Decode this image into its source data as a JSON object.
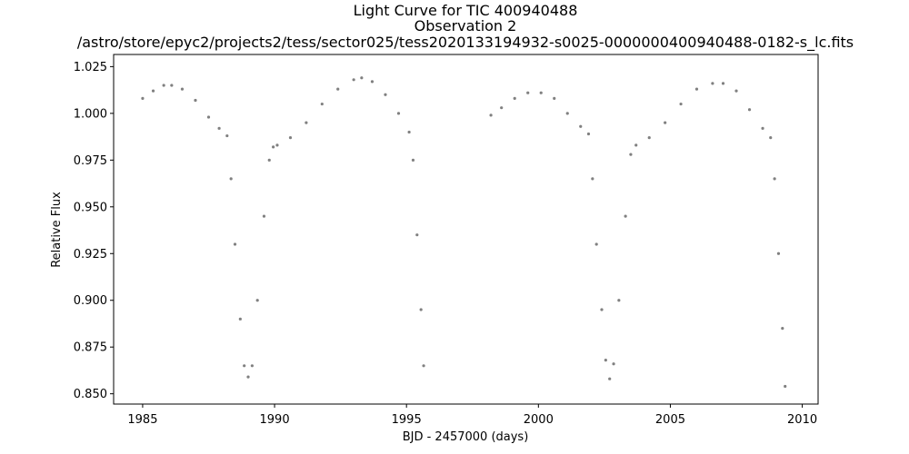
{
  "chart_data": {
    "type": "scatter",
    "title": "Light Curve for TIC 400940488",
    "subtitle": "Observation 2",
    "file_path": "/astro/store/epyc2/projects2/tess/sector025/tess2020133194932-s0025-0000000400940488-0182-s_lc.fits",
    "xlabel": "BJD - 2457000 (days)",
    "ylabel": "Relative Flux",
    "xlim": [
      1983.9,
      2010.6
    ],
    "ylim": [
      0.8445,
      1.0315
    ],
    "xticks": [
      1985,
      1990,
      1995,
      2000,
      2005,
      2010
    ],
    "xtick_labels": [
      "1985",
      "1990",
      "1995",
      "2000",
      "2005",
      "2010"
    ],
    "yticks": [
      0.85,
      0.875,
      0.9,
      0.925,
      0.95,
      0.975,
      1.0,
      1.025
    ],
    "ytick_labels": [
      "0.850",
      "0.875",
      "0.900",
      "0.925",
      "0.950",
      "0.975",
      "1.000",
      "1.025"
    ],
    "grid": false,
    "marker_color": "#808080",
    "series": [
      {
        "x": [
          1985.0,
          1985.4,
          1985.8,
          1986.1,
          1986.5,
          1987.0,
          1987.5,
          1987.9,
          1988.2,
          1988.35,
          1988.5,
          1988.7,
          1988.85,
          1989.0,
          1989.15,
          1989.35,
          1989.6,
          1989.8,
          1989.95,
          1990.1,
          1990.6,
          1991.2,
          1991.8,
          1992.4,
          1993.0,
          1993.3,
          1993.7,
          1994.2,
          1994.7,
          1995.1,
          1995.25,
          1995.4,
          1995.55,
          1995.65
        ],
        "y": [
          1.008,
          1.012,
          1.015,
          1.015,
          1.013,
          1.007,
          0.998,
          0.992,
          0.988,
          0.965,
          0.93,
          0.89,
          0.865,
          0.859,
          0.865,
          0.9,
          0.945,
          0.975,
          0.982,
          0.983,
          0.987,
          0.995,
          1.005,
          1.013,
          1.018,
          1.019,
          1.017,
          1.01,
          1.0,
          0.99,
          0.975,
          0.935,
          0.895,
          0.865
        ]
      },
      {
        "x": [
          1998.2,
          1998.6,
          1999.1,
          1999.6,
          2000.1,
          2000.6,
          2001.1,
          2001.6,
          2001.9,
          2002.05,
          2002.2,
          2002.4,
          2002.55,
          2002.7,
          2002.85,
          2003.05,
          2003.3,
          2003.5,
          2003.7,
          2004.2,
          2004.8,
          2005.4,
          2006.0,
          2006.6,
          2007.0,
          2007.5,
          2008.0,
          2008.5,
          2008.8,
          2008.95,
          2009.1,
          2009.25,
          2009.35
        ],
        "y": [
          0.999,
          1.003,
          1.008,
          1.011,
          1.011,
          1.008,
          1.0,
          0.993,
          0.989,
          0.965,
          0.93,
          0.895,
          0.868,
          0.858,
          0.866,
          0.9,
          0.945,
          0.978,
          0.983,
          0.987,
          0.995,
          1.005,
          1.013,
          1.016,
          1.016,
          1.012,
          1.002,
          0.992,
          0.987,
          0.965,
          0.925,
          0.885,
          0.854
        ]
      }
    ]
  }
}
